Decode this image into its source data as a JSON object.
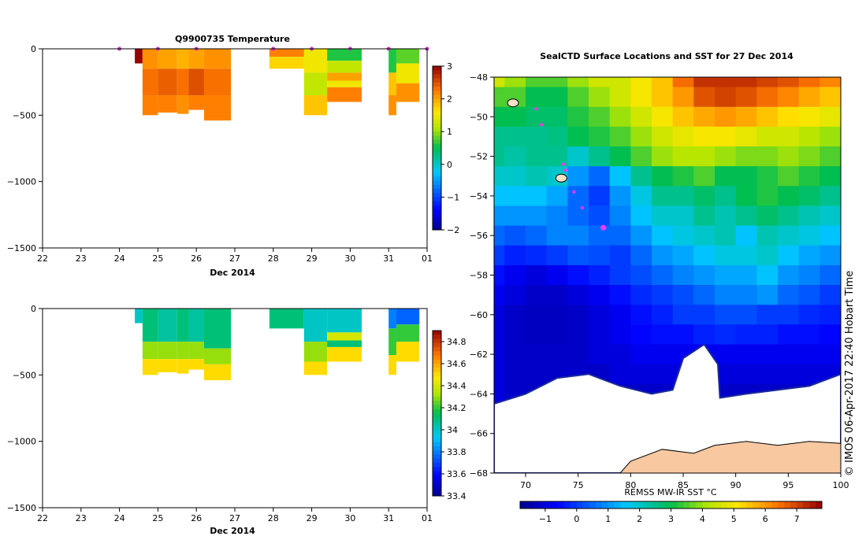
{
  "chart_data": [
    {
      "type": "heatmap",
      "title": "Q9900735  Temperature",
      "xlabel": "Dec 2014",
      "xlim": [
        22,
        32
      ],
      "x_tick_labels": [
        "22",
        "23",
        "24",
        "25",
        "26",
        "27",
        "28",
        "29",
        "30",
        "31",
        "01"
      ],
      "ylim": [
        -1500,
        0
      ],
      "y_ticks": [
        0,
        -500,
        -1000,
        -1500
      ],
      "colorbar": {
        "range": [
          -2,
          3
        ],
        "ticks": [
          3,
          2,
          1,
          0,
          -1,
          -2
        ]
      },
      "surface_markers_day": [
        24.0,
        25.0,
        26.0,
        28.0,
        29.0,
        30.0,
        31.0,
        32.0
      ],
      "profiles": [
        {
          "x0": 24.4,
          "x1": 24.6,
          "depth": 110,
          "layers": [
            {
              "z": 0,
              "v": 3.0
            }
          ]
        },
        {
          "x0": 24.6,
          "x1": 25.0,
          "depth": 500,
          "layers": [
            {
              "z": 0,
              "v": 2.1
            },
            {
              "z": 150,
              "v": 2.3
            },
            {
              "z": 350,
              "v": 2.2
            }
          ]
        },
        {
          "x0": 25.0,
          "x1": 25.5,
          "depth": 480,
          "layers": [
            {
              "z": 0,
              "v": 2.0
            },
            {
              "z": 150,
              "v": 2.4
            },
            {
              "z": 350,
              "v": 2.2
            }
          ]
        },
        {
          "x0": 25.5,
          "x1": 25.8,
          "depth": 490,
          "layers": [
            {
              "z": 0,
              "v": 1.9
            },
            {
              "z": 150,
              "v": 2.3
            },
            {
              "z": 350,
              "v": 2.1
            }
          ]
        },
        {
          "x0": 25.8,
          "x1": 26.2,
          "depth": 460,
          "layers": [
            {
              "z": 0,
              "v": 2.0
            },
            {
              "z": 150,
              "v": 2.5
            },
            {
              "z": 350,
              "v": 2.2
            }
          ]
        },
        {
          "x0": 26.2,
          "x1": 26.9,
          "depth": 540,
          "layers": [
            {
              "z": 0,
              "v": 2.1
            },
            {
              "z": 150,
              "v": 2.3
            },
            {
              "z": 350,
              "v": 2.2
            }
          ]
        },
        {
          "x0": 27.9,
          "x1": 28.8,
          "depth": 150,
          "layers": [
            {
              "z": 0,
              "v": 2.2
            },
            {
              "z": 60,
              "v": 1.7
            }
          ]
        },
        {
          "x0": 28.8,
          "x1": 29.4,
          "depth": 500,
          "layers": [
            {
              "z": 0,
              "v": 1.5
            },
            {
              "z": 180,
              "v": 1.2
            },
            {
              "z": 350,
              "v": 1.8
            }
          ]
        },
        {
          "x0": 29.4,
          "x1": 30.3,
          "depth": 400,
          "layers": [
            {
              "z": 0,
              "v": 0.6
            },
            {
              "z": 90,
              "v": 1.2
            },
            {
              "z": 180,
              "v": 2.0
            },
            {
              "z": 240,
              "v": 1.5
            },
            {
              "z": 290,
              "v": 2.2
            }
          ]
        },
        {
          "x0": 31.0,
          "x1": 31.2,
          "depth": 500,
          "layers": [
            {
              "z": 0,
              "v": 0.6
            },
            {
              "z": 180,
              "v": 1.8
            },
            {
              "z": 350,
              "v": 2.1
            }
          ]
        },
        {
          "x0": 31.2,
          "x1": 31.8,
          "depth": 400,
          "layers": [
            {
              "z": 0,
              "v": 0.8
            },
            {
              "z": 110,
              "v": 1.5
            },
            {
              "z": 260,
              "v": 2.1
            }
          ]
        }
      ]
    },
    {
      "type": "heatmap",
      "title": "",
      "xlabel": "Dec 2014",
      "xlim": [
        22,
        32
      ],
      "x_tick_labels": [
        "22",
        "23",
        "24",
        "25",
        "26",
        "27",
        "28",
        "29",
        "30",
        "31",
        "01"
      ],
      "ylim": [
        -1500,
        0
      ],
      "y_ticks": [
        0,
        -500,
        -1000,
        -1500
      ],
      "colorbar": {
        "range": [
          33.4,
          34.9
        ],
        "ticks": [
          34.8,
          34.6,
          34.4,
          34.2,
          34,
          33.8,
          33.6,
          33.4
        ]
      },
      "profiles": [
        {
          "x0": 24.4,
          "x1": 24.6,
          "depth": 110,
          "layers": [
            {
              "z": 0,
              "v": 34.0
            }
          ]
        },
        {
          "x0": 24.6,
          "x1": 25.0,
          "depth": 500,
          "layers": [
            {
              "z": 0,
              "v": 34.1
            },
            {
              "z": 250,
              "v": 34.3
            },
            {
              "z": 380,
              "v": 34.5
            }
          ]
        },
        {
          "x0": 25.0,
          "x1": 25.5,
          "depth": 480,
          "layers": [
            {
              "z": 0,
              "v": 34.05
            },
            {
              "z": 250,
              "v": 34.3
            },
            {
              "z": 380,
              "v": 34.5
            }
          ]
        },
        {
          "x0": 25.5,
          "x1": 25.8,
          "depth": 490,
          "layers": [
            {
              "z": 0,
              "v": 34.1
            },
            {
              "z": 250,
              "v": 34.3
            },
            {
              "z": 380,
              "v": 34.5
            }
          ]
        },
        {
          "x0": 25.8,
          "x1": 26.2,
          "depth": 460,
          "layers": [
            {
              "z": 0,
              "v": 34.05
            },
            {
              "z": 250,
              "v": 34.3
            },
            {
              "z": 380,
              "v": 34.5
            }
          ]
        },
        {
          "x0": 26.2,
          "x1": 26.9,
          "depth": 540,
          "layers": [
            {
              "z": 0,
              "v": 34.1
            },
            {
              "z": 300,
              "v": 34.3
            },
            {
              "z": 420,
              "v": 34.5
            }
          ]
        },
        {
          "x0": 27.9,
          "x1": 28.8,
          "depth": 150,
          "layers": [
            {
              "z": 0,
              "v": 34.1
            }
          ]
        },
        {
          "x0": 28.8,
          "x1": 29.4,
          "depth": 500,
          "layers": [
            {
              "z": 0,
              "v": 34.0
            },
            {
              "z": 250,
              "v": 34.3
            },
            {
              "z": 400,
              "v": 34.5
            }
          ]
        },
        {
          "x0": 29.4,
          "x1": 30.3,
          "depth": 400,
          "layers": [
            {
              "z": 0,
              "v": 34.0
            },
            {
              "z": 180,
              "v": 34.4
            },
            {
              "z": 240,
              "v": 34.1
            },
            {
              "z": 290,
              "v": 34.5
            }
          ]
        },
        {
          "x0": 31.0,
          "x1": 31.2,
          "depth": 500,
          "layers": [
            {
              "z": 0,
              "v": 33.8
            },
            {
              "z": 150,
              "v": 34.2
            },
            {
              "z": 350,
              "v": 34.5
            }
          ]
        },
        {
          "x0": 31.2,
          "x1": 31.8,
          "depth": 400,
          "layers": [
            {
              "z": 0,
              "v": 33.75
            },
            {
              "z": 120,
              "v": 34.2
            },
            {
              "z": 250,
              "v": 34.5
            }
          ]
        }
      ]
    },
    {
      "type": "heatmap",
      "title": "SealCTD Surface Locations and SST for 27 Dec 2014",
      "xlabel": "",
      "ylabel": "",
      "xlim": [
        67,
        100
      ],
      "ylim": [
        -68,
        -48
      ],
      "x_ticks": [
        70,
        75,
        80,
        85,
        90,
        95,
        100
      ],
      "y_ticks": [
        -48,
        -50,
        -52,
        -54,
        -56,
        -58,
        -60,
        -62,
        -64,
        -66,
        -68
      ],
      "colorbar": {
        "label": "REMSS MW-IR SST °C",
        "range": [
          -1.8,
          7.8
        ],
        "ticks": [
          -1,
          0,
          1,
          2,
          3,
          4,
          5,
          6,
          7
        ]
      },
      "sst_rows": [
        {
          "lat": -48,
          "v": [
            4.5,
            4.0,
            3.5,
            3.5,
            4.0,
            4.5,
            4.5,
            5.0,
            5.5,
            6.5,
            7.2,
            7.2,
            7.2,
            7.0,
            6.8,
            6.5,
            6.2
          ]
        },
        {
          "lat": -49,
          "v": [
            3.5,
            3.5,
            3.0,
            3.0,
            3.5,
            4.0,
            4.5,
            5.0,
            5.5,
            6.0,
            6.8,
            7.0,
            6.8,
            6.5,
            6.2,
            5.8,
            5.5
          ]
        },
        {
          "lat": -50,
          "v": [
            3.0,
            3.0,
            2.8,
            2.8,
            3.2,
            3.5,
            4.0,
            4.5,
            5.0,
            5.5,
            5.8,
            6.0,
            5.8,
            5.5,
            5.2,
            5.0,
            4.8
          ]
        },
        {
          "lat": -51,
          "v": [
            2.5,
            2.5,
            2.5,
            2.6,
            3.0,
            3.2,
            3.5,
            4.0,
            4.5,
            4.8,
            5.0,
            5.0,
            4.8,
            4.5,
            4.5,
            4.2,
            4.0
          ]
        },
        {
          "lat": -52,
          "v": [
            2.5,
            2.3,
            2.5,
            2.5,
            2.0,
            2.5,
            3.0,
            3.5,
            4.0,
            4.2,
            4.2,
            4.0,
            3.8,
            3.8,
            4.0,
            3.8,
            3.5
          ]
        },
        {
          "lat": -53,
          "v": [
            2.0,
            2.0,
            2.2,
            2.0,
            1.0,
            0.5,
            1.5,
            2.5,
            3.0,
            3.2,
            3.5,
            3.0,
            3.0,
            3.2,
            3.5,
            3.2,
            3.0
          ]
        },
        {
          "lat": -54,
          "v": [
            1.5,
            1.5,
            1.5,
            1.2,
            0.5,
            0.0,
            1.0,
            1.8,
            2.5,
            2.5,
            2.8,
            2.5,
            3.0,
            3.2,
            3.0,
            2.8,
            2.5
          ]
        },
        {
          "lat": -55,
          "v": [
            1.0,
            1.0,
            1.0,
            0.8,
            0.5,
            0.2,
            0.8,
            1.5,
            2.0,
            2.0,
            2.5,
            2.2,
            2.5,
            2.8,
            2.5,
            2.2,
            2.0
          ]
        },
        {
          "lat": -56,
          "v": [
            0.5,
            0.3,
            0.5,
            0.8,
            0.8,
            0.5,
            0.5,
            1.0,
            1.5,
            1.8,
            2.0,
            2.2,
            1.5,
            2.2,
            2.0,
            1.8,
            1.5
          ]
        },
        {
          "lat": -57,
          "v": [
            0.0,
            -0.3,
            -0.2,
            0.0,
            0.3,
            0.2,
            0.0,
            0.5,
            1.0,
            1.2,
            1.5,
            1.8,
            1.8,
            2.0,
            1.5,
            1.2,
            1.0
          ]
        },
        {
          "lat": -58,
          "v": [
            -0.5,
            -0.8,
            -1.0,
            -0.8,
            -0.5,
            -0.3,
            0.0,
            0.2,
            0.5,
            0.8,
            1.0,
            1.2,
            1.2,
            1.5,
            1.0,
            0.8,
            0.5
          ]
        },
        {
          "lat": -59,
          "v": [
            -0.8,
            -1.0,
            -1.2,
            -1.2,
            -1.0,
            -0.8,
            -0.5,
            -0.2,
            0.0,
            0.2,
            0.5,
            0.8,
            0.8,
            1.0,
            0.5,
            0.3,
            0.0
          ]
        },
        {
          "lat": -60,
          "v": [
            -1.0,
            -1.2,
            -1.3,
            -1.3,
            -1.2,
            -1.0,
            -0.8,
            -0.5,
            -0.3,
            0.0,
            0.0,
            0.2,
            0.2,
            0.0,
            0.0,
            -0.2,
            -0.3
          ]
        },
        {
          "lat": -61,
          "v": [
            -1.0,
            -1.2,
            -1.3,
            -1.3,
            -1.2,
            -1.0,
            -0.8,
            -0.6,
            -0.5,
            -0.5,
            -0.3,
            -0.2,
            -0.3,
            -0.3,
            -0.5,
            -0.5,
            -0.6
          ]
        },
        {
          "lat": -62,
          "v": [
            -1.0,
            -1.2,
            -1.2,
            -1.2,
            -1.2,
            -1.0,
            -1.0,
            -0.8,
            -0.8,
            -0.8,
            -0.8,
            -0.8,
            -0.8,
            -0.8,
            -0.8,
            -0.8,
            -0.8
          ]
        },
        {
          "lat": -63,
          "v": [
            -1.0,
            -1.2,
            -1.2,
            -1.2,
            -1.2,
            -1.2,
            -1.0,
            -1.0,
            -1.0,
            -1.0,
            -1.0,
            -1.0,
            -1.0,
            -1.0,
            -1.0,
            -1.0,
            -1.0
          ]
        },
        {
          "lat": -64,
          "v": [
            -1.0,
            -1.2,
            -1.2,
            -1.2,
            -1.2,
            -1.2,
            -1.2,
            -1.2,
            -1.2,
            -1.2,
            -1.2,
            -1.2,
            -1.2,
            -1.2,
            -1.2,
            -1.2,
            -1.2
          ]
        },
        {
          "lat": -65,
          "v": [
            -1.2,
            -1.2,
            -1.2,
            -1.2,
            -1.2,
            -1.2,
            -1.2,
            -1.2,
            -1.2,
            -1.2,
            -1.2,
            -1.2,
            -1.2,
            -1.2,
            -1.2,
            -1.2,
            -1.2
          ]
        },
        {
          "lat": -66,
          "v": [
            -1.2,
            -1.2,
            -1.2,
            -1.2,
            -1.2,
            -1.2,
            -1.2,
            -1.2,
            -1.2,
            -1.2,
            -1.2,
            -1.2,
            -1.2,
            -1.2,
            -1.2,
            -1.2,
            -1.2
          ]
        },
        {
          "lat": -67,
          "v": [
            -1.3,
            -1.3,
            -1.3,
            -1.3,
            -1.3,
            -1.3,
            -1.3,
            -1.3,
            -1.3,
            -1.3,
            -1.3,
            -1.3,
            -1.3,
            -1.3,
            -1.3,
            -1.3,
            -1.3
          ]
        },
        {
          "lat": -68,
          "v": [
            -1.3,
            -1.3,
            -1.3,
            -1.3,
            -1.3,
            -1.3,
            -1.3,
            -1.3,
            -1.3,
            -1.3,
            -1.3,
            -1.3,
            -1.3,
            -1.3,
            -1.3,
            -1.3,
            -1.3
          ]
        }
      ],
      "sst_row_lons": [
        67,
        69,
        71,
        73,
        75,
        77,
        79,
        81,
        83,
        85,
        87,
        89,
        91,
        93,
        95,
        97,
        99
      ],
      "sea_ice_boundary": [
        [
          67,
          -64.5
        ],
        [
          70,
          -64.0
        ],
        [
          73,
          -63.2
        ],
        [
          76,
          -63.0
        ],
        [
          79,
          -63.6
        ],
        [
          82,
          -64.0
        ],
        [
          84,
          -63.8
        ],
        [
          85,
          -62.2
        ],
        [
          87,
          -61.5
        ],
        [
          88.3,
          -62.5
        ],
        [
          88.5,
          -64.2
        ],
        [
          91,
          -64.0
        ],
        [
          94,
          -63.8
        ],
        [
          97,
          -63.6
        ],
        [
          100,
          -63.0
        ]
      ],
      "land_boundary": [
        [
          79,
          -68
        ],
        [
          80,
          -67.4
        ],
        [
          83,
          -66.8
        ],
        [
          86,
          -67.0
        ],
        [
          88,
          -66.6
        ],
        [
          91,
          -66.4
        ],
        [
          94,
          -66.6
        ],
        [
          97,
          -66.4
        ],
        [
          100,
          -66.5
        ]
      ],
      "seal_positions": [
        [
          71.0,
          -49.6
        ],
        [
          71.5,
          -50.4
        ],
        [
          73.6,
          -52.4
        ],
        [
          73.8,
          -52.7
        ],
        [
          74.6,
          -53.8
        ],
        [
          75.4,
          -54.6
        ],
        [
          77.4,
          -55.6
        ]
      ],
      "islands": [
        [
          68.8,
          -49.3
        ],
        [
          73.4,
          -53.1
        ]
      ],
      "colors": {
        "seal": "#ff33ff",
        "land": "#f8c8a0",
        "ice": "#ffffff",
        "coast": "#000000"
      }
    }
  ],
  "footer": {
    "credit": "© IMOS 06-Apr-2017 22:40 Hobart Time"
  }
}
